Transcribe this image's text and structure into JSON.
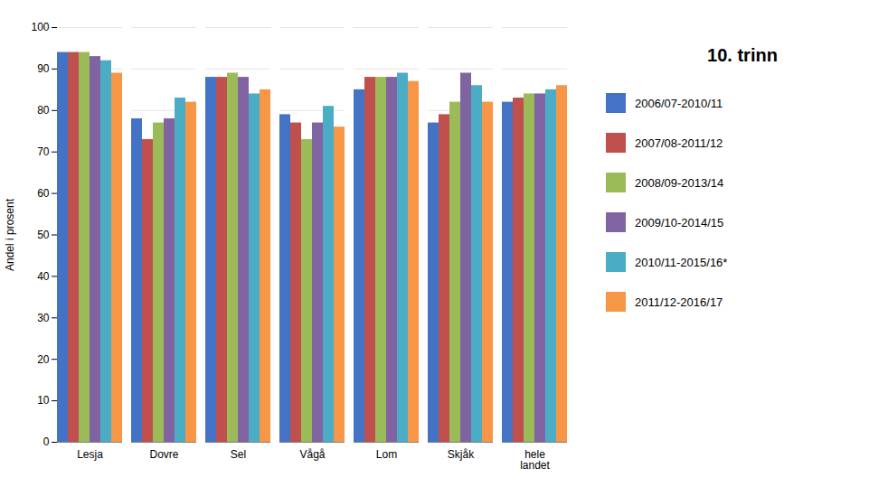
{
  "chart_data": {
    "type": "bar",
    "title": "10. trinn",
    "categories": [
      "Lesja",
      "Dovre",
      "Sel",
      "Vågå",
      "Lom",
      "Skjåk",
      "hele\nlandet"
    ],
    "series": [
      {
        "name": "2006/07-2010/11",
        "color": "#4472C4",
        "values": [
          94,
          78,
          88,
          79,
          85,
          77,
          82
        ]
      },
      {
        "name": "2007/08-2011/12",
        "color": "#C0504D",
        "values": [
          94,
          73,
          88,
          77,
          88,
          79,
          83
        ]
      },
      {
        "name": "2008/09-2013/14",
        "color": "#9BBB59",
        "values": [
          94,
          77,
          89,
          73,
          88,
          82,
          84
        ]
      },
      {
        "name": "2009/10-2014/15",
        "color": "#8064A2",
        "values": [
          93,
          78,
          88,
          77,
          88,
          89,
          84
        ]
      },
      {
        "name": "2010/11-2015/16*",
        "color": "#4BACC6",
        "values": [
          92,
          83,
          84,
          81,
          89,
          86,
          85
        ]
      },
      {
        "name": "2011/12-2016/17",
        "color": "#F79646",
        "values": [
          89,
          82,
          85,
          76,
          87,
          82,
          86
        ]
      }
    ],
    "ylabel": "Andel i prosent",
    "ylim": [
      0,
      100
    ],
    "yticks": [
      0,
      10,
      20,
      30,
      40,
      50,
      60,
      70,
      80,
      90,
      100
    ],
    "grid": true,
    "legend": "right"
  }
}
